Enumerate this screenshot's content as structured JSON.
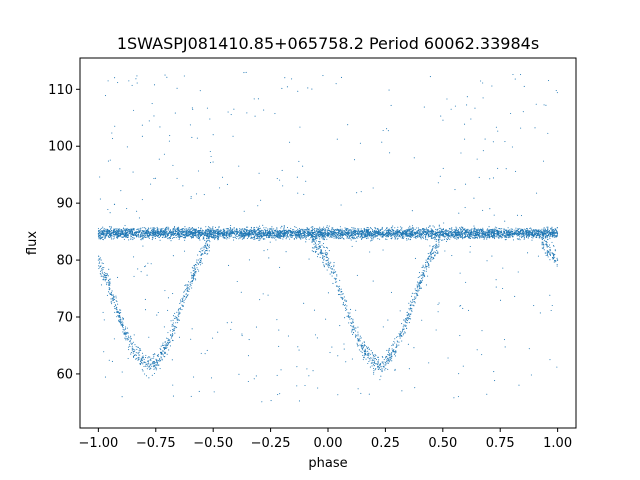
{
  "chart_data": {
    "type": "scatter",
    "title": "1SWASPJ081410.85+065758.2 Period 60062.33984s",
    "xlabel": "phase",
    "ylabel": "flux",
    "xlim": [
      -1.08,
      1.08
    ],
    "ylim": [
      50.5,
      115.5
    ],
    "x_ticks": [
      -1.0,
      -0.75,
      -0.5,
      -0.25,
      0.0,
      0.25,
      0.5,
      0.75,
      1.0
    ],
    "x_tick_labels": [
      "−1.00",
      "−0.75",
      "−0.50",
      "−0.25",
      "0.00",
      "0.25",
      "0.50",
      "0.75",
      "1.00"
    ],
    "y_ticks": [
      60,
      70,
      80,
      90,
      100,
      110
    ],
    "y_tick_labels": [
      "60",
      "70",
      "80",
      "90",
      "100",
      "110"
    ],
    "grid": false,
    "marker_color": "#1f77b4",
    "series": [
      {
        "description_of_shape": "phase-folded light curve",
        "x": [
          -1.0,
          -0.95,
          -0.9,
          -0.85,
          -0.8,
          -0.775,
          -0.75,
          -0.7,
          -0.65,
          -0.6,
          -0.55,
          -0.5,
          -0.45,
          -0.4,
          -0.3,
          -0.2,
          -0.1,
          0.0,
          0.05,
          0.1,
          0.15,
          0.2,
          0.225,
          0.25,
          0.3,
          0.35,
          0.4,
          0.45,
          0.5,
          0.55,
          0.6,
          0.7,
          0.8,
          0.9,
          1.0
        ],
        "y": [
          80,
          75,
          69,
          64.5,
          62,
          61.5,
          62,
          65,
          70.5,
          76,
          81,
          84.5,
          85,
          85,
          85,
          85,
          85,
          80,
          75,
          69,
          64.5,
          62,
          61.5,
          62,
          65,
          70.5,
          76,
          81,
          84.5,
          85,
          85,
          85,
          85,
          85,
          80
        ]
      }
    ],
    "baseline_flux": 84.7
  }
}
